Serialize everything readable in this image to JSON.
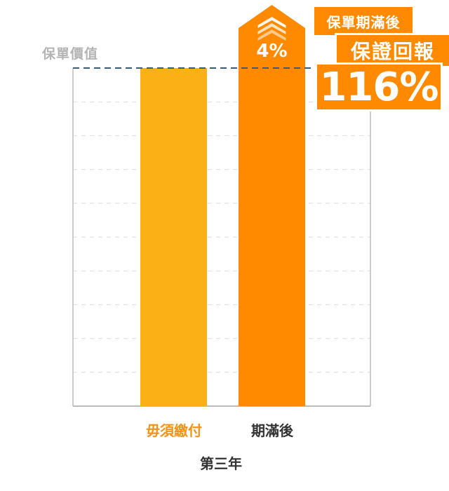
{
  "chart_data": {
    "type": "bar",
    "categories": [
      "毋須繳付",
      "期滿後"
    ],
    "values": [
      100,
      104
    ],
    "ylim": [
      0,
      100
    ],
    "xlabel": "第三年",
    "reference_line": {
      "label": "保單價值",
      "value": 100
    },
    "increase_label": "4%",
    "grid": true
  },
  "callout": {
    "line1": "保單期滿後",
    "line2": "保證回報",
    "line3": "116%"
  },
  "colors": {
    "bar1": "#FBB116",
    "bar2": "#FF8A00",
    "bar1_label": "#F39315",
    "bar2_label": "#333333",
    "callout": "#FF8A00",
    "reference_line": "#3a5a78",
    "grid": "#dcdcdc"
  }
}
